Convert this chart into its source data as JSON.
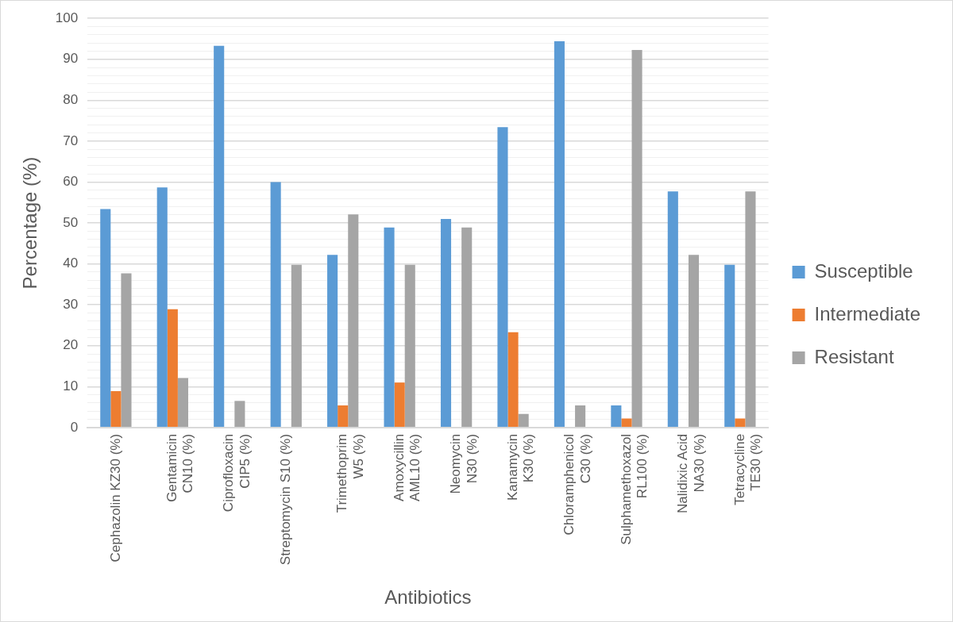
{
  "chart_data": {
    "type": "bar",
    "xlabel": "Antibiotics",
    "ylabel": "Percentage (%)",
    "categories": [
      "Cephazolin KZ30 (%)",
      "Gentamicin\nCN10 (%)",
      "Ciprofloxacin\nCIP5 (%)",
      "Streptomycin S10 (%)",
      "Trimethoprim\nW5 (%)",
      "Amoxycillin\nAML10 (%)",
      "Neomycin\nN30 (%)",
      "Kanamycin\nK30 (%)",
      "Chloramphenicol\nC30 (%)",
      "Sulphamethoxazol\nRL100 (%)",
      "Nalidixic Acid\nNA30 (%)",
      "Tetracycline\nTE30 (%)"
    ],
    "series": [
      {
        "name": "Susceptible",
        "color": "#5b9bd5",
        "values": [
          53.4,
          58.7,
          93.3,
          60.0,
          42.2,
          48.9,
          51.0,
          73.4,
          94.4,
          5.4,
          57.7,
          39.8
        ]
      },
      {
        "name": "Intermediate",
        "color": "#ed7d31",
        "values": [
          8.9,
          28.9,
          0,
          0,
          5.4,
          11.0,
          0,
          23.3,
          0,
          2.2,
          0,
          2.2
        ]
      },
      {
        "name": "Resistant",
        "color": "#a5a5a5",
        "values": [
          37.7,
          12.1,
          6.5,
          39.8,
          52.1,
          39.8,
          48.9,
          3.3,
          5.4,
          92.3,
          42.2,
          57.7
        ]
      }
    ],
    "ylim": [
      0,
      100
    ],
    "yticks": [
      0,
      {
        "value": 2,
        "label": null
      },
      {
        "value": 4,
        "label": null
      },
      {
        "value": 6,
        "label": null
      },
      {
        "value": 8,
        "label": null
      },
      10,
      {
        "value": 12,
        "label": null
      },
      {
        "value": 14,
        "label": null
      },
      {
        "value": 16,
        "label": null
      },
      {
        "value": 18,
        "label": null
      },
      20,
      {
        "value": 22,
        "label": null
      },
      {
        "value": 24,
        "label": null
      },
      {
        "value": 26,
        "label": null
      },
      {
        "value": 28,
        "label": null
      },
      30,
      {
        "value": 32,
        "label": null
      },
      {
        "value": 34,
        "label": null
      },
      {
        "value": 36,
        "label": null
      },
      {
        "value": 38,
        "label": null
      },
      40,
      {
        "value": 42,
        "label": null
      },
      {
        "value": 44,
        "label": null
      },
      {
        "value": 46,
        "label": null
      },
      {
        "value": 48,
        "label": null
      },
      50,
      {
        "value": 52,
        "label": null
      },
      {
        "value": 54,
        "label": null
      },
      {
        "value": 56,
        "label": null
      },
      {
        "value": 58,
        "label": null
      },
      60,
      {
        "value": 62,
        "label": null
      },
      {
        "value": 64,
        "label": null
      },
      {
        "value": 66,
        "label": null
      },
      {
        "value": 68,
        "label": null
      },
      70,
      {
        "value": 72,
        "label": null
      },
      {
        "value": 74,
        "label": null
      },
      {
        "value": 76,
        "label": null
      },
      {
        "value": 78,
        "label": null
      },
      80,
      {
        "value": 82,
        "label": null
      },
      {
        "value": 84,
        "label": null
      },
      {
        "value": 86,
        "label": null
      },
      {
        "value": 88,
        "label": null
      },
      90,
      {
        "value": 92,
        "label": null
      },
      {
        "value": 94,
        "label": null
      },
      {
        "value": 96,
        "label": null
      },
      {
        "value": 98,
        "label": null
      },
      100
    ],
    "grid": "y",
    "legend": "right"
  }
}
